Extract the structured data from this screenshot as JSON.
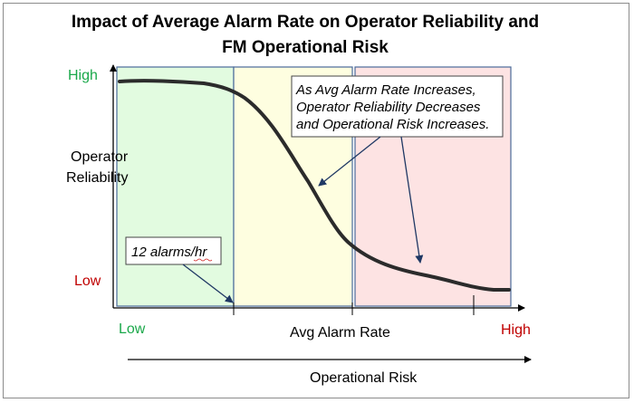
{
  "title_line1": "Impact of Average Alarm Rate on Operator Reliability and",
  "title_line2": "FM Operational Risk",
  "y_axis": {
    "label_line1": "Operator",
    "label_line2": "Reliability",
    "high": "High",
    "low": "Low"
  },
  "x_axis": {
    "label": "Avg Alarm Rate",
    "low": "Low",
    "high": "High"
  },
  "risk_axis_label": "Operational Risk",
  "zones": [
    {
      "name": "low-rate",
      "color": "#e2fbe0"
    },
    {
      "name": "mid-rate",
      "color": "#fefee0"
    },
    {
      "name": "high-rate",
      "color": "#fde3e3"
    }
  ],
  "colors": {
    "high_label": "#1aa84a",
    "low_label": "#c00000",
    "curve": "#2b2b2b",
    "arrow": "#1f3864"
  },
  "annotations": {
    "trend_line1": "As Avg Alarm Rate Increases,",
    "trend_line2": "Operator Reliability Decreases",
    "trend_line3": "and Operational Risk Increases.",
    "threshold": "12 alarms/hr"
  }
}
